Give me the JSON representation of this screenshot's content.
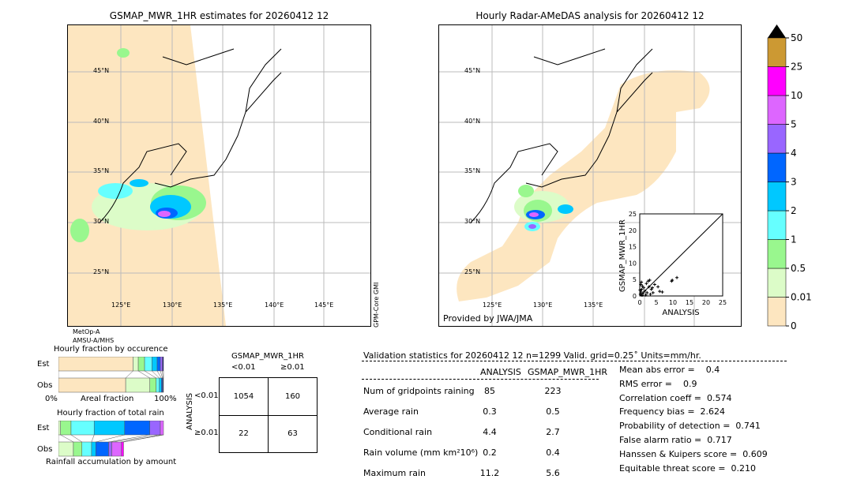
{
  "left_map": {
    "title": "GSMAP_MWR_1HR estimates for 20260412 12",
    "lat_labels": [
      "45°N",
      "40°N",
      "35°N",
      "30°N",
      "25°N"
    ],
    "lon_labels": [
      "125°E",
      "130°E",
      "135°E",
      "140°E",
      "145°E"
    ],
    "sensor_side": "GPM-Core GMI",
    "sensor_bottom_1": "MetOp-A",
    "sensor_bottom_2": "AMSU-A/MHS"
  },
  "right_map": {
    "title": "Hourly Radar-AMeDAS analysis for 20260412 12",
    "lat_labels": [
      "45°N",
      "40°N",
      "35°N",
      "30°N",
      "25°N"
    ],
    "lon_labels": [
      "125°E",
      "130°E",
      "135°E"
    ],
    "credit": "Provided by JWA/JMA"
  },
  "colorbar": {
    "labels": [
      "0",
      "0.01",
      "0.5",
      "1",
      "2",
      "3",
      "4",
      "5",
      "10",
      "25",
      "50"
    ],
    "colors": [
      "#fde6c0",
      "#dcfcc8",
      "#99f78e",
      "#66ffff",
      "#00c8ff",
      "#0066ff",
      "#9966ff",
      "#dd66ff",
      "#ff00ff",
      "#cc9933"
    ],
    "over_color": "#000000"
  },
  "chart_data": [
    {
      "type": "scatter",
      "xlabel": "ANALYSIS",
      "ylabel": "GSMAP_MWR_1HR",
      "xlim": [
        0,
        25
      ],
      "ylim": [
        0,
        25
      ],
      "xticks": [
        "0",
        "5",
        "10",
        "15",
        "20",
        "25"
      ],
      "yticks": [
        "0",
        "5",
        "10",
        "15",
        "20",
        "25"
      ],
      "points": [
        [
          0.2,
          0.5
        ],
        [
          0.4,
          1.2
        ],
        [
          0.6,
          2.0
        ],
        [
          0.8,
          3.0
        ],
        [
          1.0,
          0.8
        ],
        [
          0.3,
          3.5
        ],
        [
          0.5,
          4.2
        ],
        [
          1.2,
          2.5
        ],
        [
          1.5,
          1.5
        ],
        [
          2.0,
          3.8
        ],
        [
          2.5,
          4.5
        ],
        [
          3.0,
          4.8
        ],
        [
          3.5,
          2.0
        ],
        [
          4.0,
          1.0
        ],
        [
          3.2,
          0.5
        ],
        [
          2.8,
          2.8
        ],
        [
          4.5,
          3.5
        ],
        [
          5.5,
          2.8
        ],
        [
          6.0,
          1.4
        ],
        [
          6.8,
          1.2
        ],
        [
          9.6,
          4.5
        ],
        [
          9.8,
          4.8
        ],
        [
          11.2,
          5.6
        ],
        [
          1.8,
          0.3
        ],
        [
          0.1,
          1.8
        ],
        [
          0.7,
          0.2
        ],
        [
          2.2,
          1.0
        ],
        [
          3.8,
          2.5
        ]
      ]
    },
    {
      "type": "bar",
      "title": "Hourly fraction by occurence",
      "categories": [
        "Est",
        "Obs"
      ],
      "xlabel": "Areal fraction",
      "x_min_label": "0%",
      "x_max_label": "100%",
      "series_colors": [
        "#fde6c0",
        "#dcfcc8",
        "#99f78e",
        "#66ffff",
        "#00c8ff",
        "#0066ff",
        "#9966ff",
        "#1a1a80"
      ],
      "est_fractions": [
        0.71,
        0.05,
        0.06,
        0.07,
        0.05,
        0.03,
        0.02,
        0.01
      ],
      "obs_fractions": [
        0.64,
        0.23,
        0.06,
        0.03,
        0.02,
        0.01,
        0.005,
        0.005
      ]
    },
    {
      "type": "bar",
      "title": "Hourly fraction of total rain",
      "categories": [
        "Est",
        "Obs"
      ],
      "xlabel": "Rainfall accumulation by amount",
      "series_colors": [
        "#dcfcc8",
        "#99f78e",
        "#66ffff",
        "#00c8ff",
        "#0066ff",
        "#9966ff",
        "#dd66ff",
        "#ff00ff"
      ],
      "est_fractions": [
        0.02,
        0.1,
        0.22,
        0.29,
        0.24,
        0.1,
        0.03,
        0.0
      ],
      "obs_fractions": [
        0.14,
        0.08,
        0.09,
        0.04,
        0.12,
        0.03,
        0.09,
        0.02
      ]
    }
  ],
  "contingency": {
    "title": "GSMAP_MWR_1HR",
    "col_labels": [
      "<0.01",
      "≥0.01"
    ],
    "row_axis": "ANALYSIS",
    "row_labels": [
      "<0.01",
      "≥0.01"
    ],
    "cells": [
      [
        "1054",
        "160"
      ],
      [
        "22",
        "63"
      ]
    ]
  },
  "validation": {
    "header": "Validation statistics for 20260412 12  n=1299 Valid. grid=0.25˚ Units=mm/hr.",
    "col_analysis": "ANALYSIS",
    "col_gsmap": "GSMAP_MWR_1HR",
    "rows": [
      {
        "label": "Num of gridpoints raining",
        "analysis": "85",
        "gsmap": "223"
      },
      {
        "label": "Average rain",
        "analysis": "0.3",
        "gsmap": "0.5"
      },
      {
        "label": "Conditional rain",
        "analysis": "4.4",
        "gsmap": "2.7"
      },
      {
        "label": "Rain volume (mm km²10⁶)",
        "analysis": "0.2",
        "gsmap": "0.4"
      },
      {
        "label": "Maximum rain",
        "analysis": "11.2",
        "gsmap": "5.6"
      }
    ],
    "scores": [
      "Mean abs error =    0.4",
      "RMS error =    0.9",
      "Correlation coeff =  0.574",
      "Frequency bias =  2.624",
      "Probability of detection =  0.741",
      "False alarm ratio =  0.717",
      "Hanssen & Kuipers score =  0.609",
      "Equitable threat score =  0.210"
    ]
  }
}
